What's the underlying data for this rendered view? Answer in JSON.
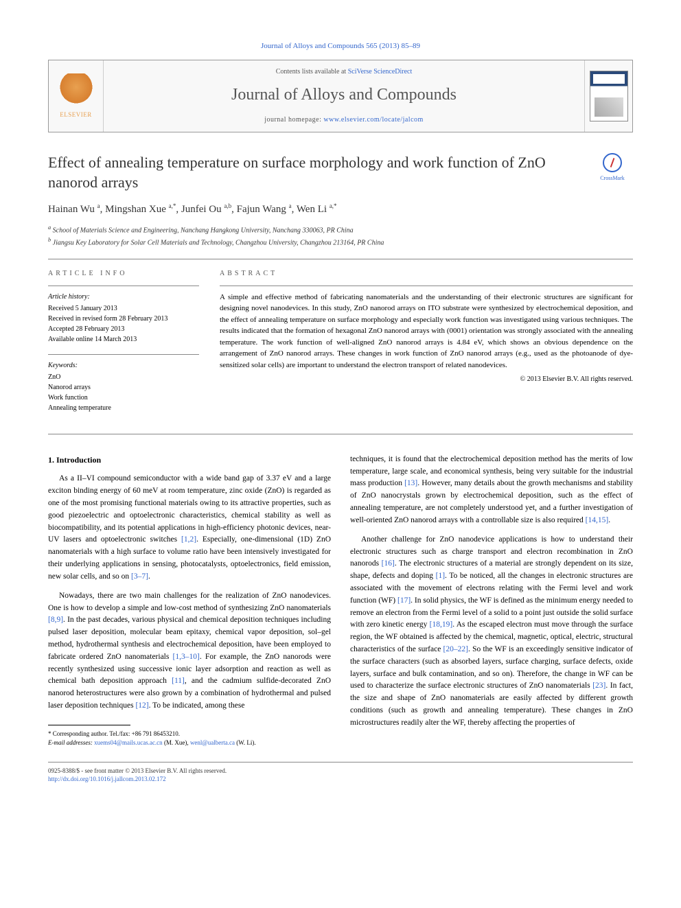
{
  "journal_ref": "Journal of Alloys and Compounds 565 (2013) 85–89",
  "header": {
    "publisher": "ELSEVIER",
    "contents_prefix": "Contents lists available at ",
    "contents_link": "SciVerse ScienceDirect",
    "journal_title": "Journal of Alloys and Compounds",
    "homepage_prefix": "journal homepage: ",
    "homepage_link": "www.elsevier.com/locate/jalcom"
  },
  "article": {
    "title": "Effect of annealing temperature on surface morphology and work function of ZnO nanorod arrays",
    "crossmark": "CrossMark",
    "authors_html": "Hainan Wu <sup>a</sup>, Mingshan Xue <sup>a,*</sup>, Junfei Ou <sup>a,b</sup>, Fajun Wang <sup>a</sup>, Wen Li <sup>a,*</sup>",
    "affiliations": [
      "a School of Materials Science and Engineering, Nanchang Hangkong University, Nanchang 330063, PR China",
      "b Jiangsu Key Laboratory for Solar Cell Materials and Technology, Changzhou University, Changzhou 213164, PR China"
    ]
  },
  "info": {
    "heading": "ARTICLE INFO",
    "history_label": "Article history:",
    "history": [
      "Received 5 January 2013",
      "Received in revised form 28 February 2013",
      "Accepted 28 February 2013",
      "Available online 14 March 2013"
    ],
    "keywords_label": "Keywords:",
    "keywords": [
      "ZnO",
      "Nanorod arrays",
      "Work function",
      "Annealing temperature"
    ]
  },
  "abstract": {
    "heading": "ABSTRACT",
    "text": "A simple and effective method of fabricating nanomaterials and the understanding of their electronic structures are significant for designing novel nanodevices. In this study, ZnO nanorod arrays on ITO substrate were synthesized by electrochemical deposition, and the effect of annealing temperature on surface morphology and especially work function was investigated using various techniques. The results indicated that the formation of hexagonal ZnO nanorod arrays with (0001) orientation was strongly associated with the annealing temperature. The work function of well-aligned ZnO nanorod arrays is 4.84 eV, which shows an obvious dependence on the arrangement of ZnO nanorod arrays. These changes in work function of ZnO nanorod arrays (e.g., used as the photoanode of dye-sensitized solar cells) are important to understand the electron transport of related nanodevices.",
    "copyright": "© 2013 Elsevier B.V. All rights reserved."
  },
  "body": {
    "section_heading": "1. Introduction",
    "p1a": "As a II–VI compound semiconductor with a wide band gap of 3.37 eV and a large exciton binding energy of 60 meV at room temperature, zinc oxide (ZnO) is regarded as one of the most promising functional materials owing to its attractive properties, such as good piezoelectric and optoelectronic characteristics, chemical stability as well as biocompatibility, and its potential applications in high-efficiency photonic devices, near-UV lasers and optoelectronic switches ",
    "ref12": "[1,2]",
    "p1b": ". Especially, one-dimensional (1D) ZnO nanomaterials with a high surface to volume ratio have been intensively investigated for their underlying applications in sensing, photocatalysts, optoelectronics, field emission, new solar cells, and so on ",
    "ref37": "[3–7]",
    "p1c": ".",
    "p2a": "Nowadays, there are two main challenges for the realization of ZnO nanodevices. One is how to develop a simple and low-cost method of synthesizing ZnO nanomaterials ",
    "ref89": "[8,9]",
    "p2b": ". In the past decades, various physical and chemical deposition techniques including pulsed laser deposition, molecular beam epitaxy, chemical vapor deposition, sol–gel method, hydrothermal synthesis and electrochemical deposition, have been employed to fabricate ordered ZnO nanomaterials ",
    "ref1310": "[1,3–10]",
    "p2c": ". For example, the ZnO nanorods were recently synthesized using successive ionic layer adsorption and reaction as well as chemical bath deposition approach ",
    "ref11": "[11]",
    "p2d": ", and the cadmium sulfide-decorated ZnO nanorod heterostructures were also grown by a combination of hydrothermal and pulsed laser deposition techniques ",
    "ref12b": "[12]",
    "p2e": ". To be indicated, among these ",
    "p3a": "techniques, it is found that the electrochemical deposition method has the merits of low temperature, large scale, and economical synthesis, being very suitable for the industrial mass production ",
    "ref13": "[13]",
    "p3b": ". However, many details about the growth mechanisms and stability of ZnO nanocrystals grown by electrochemical deposition, such as the effect of annealing temperature, are not completely understood yet, and a further investigation of well-oriented ZnO nanorod arrays with a controllable size is also required ",
    "ref1415": "[14,15]",
    "p3c": ".",
    "p4a": "Another challenge for ZnO nanodevice applications is how to understand their electronic structures such as charge transport and electron recombination in ZnO nanorods ",
    "ref16": "[16]",
    "p4b": ". The electronic structures of a material are strongly dependent on its size, shape, defects and doping ",
    "ref1": "[1]",
    "p4c": ". To be noticed, all the changes in electronic structures are associated with the movement of electrons relating with the Fermi level and work function (WF) ",
    "ref17": "[17]",
    "p4d": ". In solid physics, the WF is defined as the minimum energy needed to remove an electron from the Fermi level of a solid to a point just outside the solid surface with zero kinetic energy ",
    "ref1819": "[18,19]",
    "p4e": ". As the escaped electron must move through the surface region, the WF obtained is affected by the chemical, magnetic, optical, electric, structural characteristics of the surface ",
    "ref2022": "[20–22]",
    "p4f": ". So the WF is an exceedingly sensitive indicator of the surface characters (such as absorbed layers, surface charging, surface defects, oxide layers, surface and bulk contamination, and so on). Therefore, the change in WF can be used to characterize the surface electronic structures of ZnO nanomaterials ",
    "ref23": "[23]",
    "p4g": ". In fact, the size and shape of ZnO nanomaterials are easily affected by different growth conditions (such as growth and annealing temperature). These changes in ZnO microstructures readily alter the WF, thereby affecting the properties of"
  },
  "footnotes": {
    "corresponding": "* Corresponding author. Tel./fax: +86 791 86453210.",
    "email_label": "E-mail addresses: ",
    "email1": "xuems04@mails.ucas.ac.cn",
    "email1_who": " (M. Xue), ",
    "email2": "wenl@ualberta.ca",
    "email2_who": " (W. Li)."
  },
  "bottom": {
    "issn": "0925-8388/$ - see front matter © 2013 Elsevier B.V. All rights reserved.",
    "doi": "http://dx.doi.org/10.1016/j.jallcom.2013.02.172"
  }
}
